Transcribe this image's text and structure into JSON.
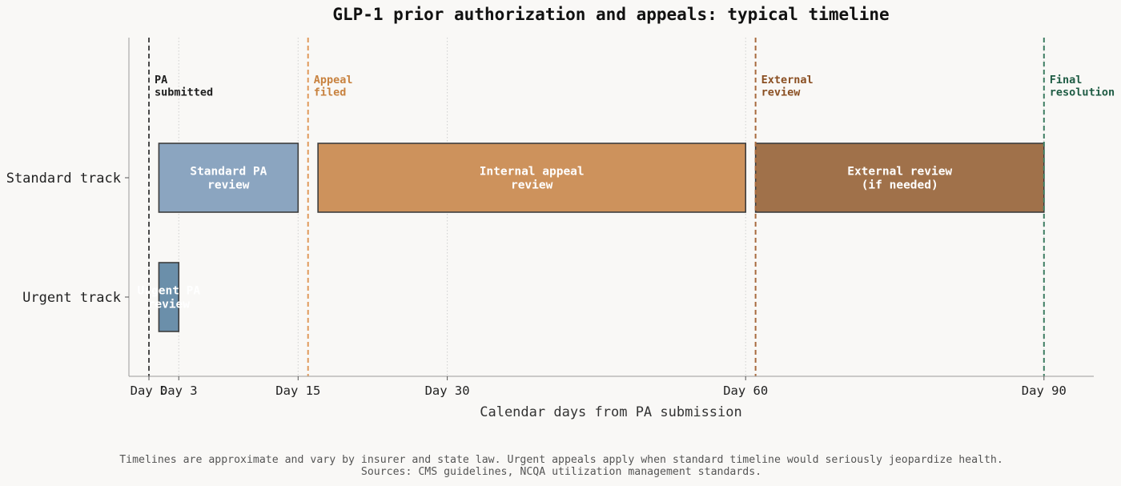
{
  "chart_data": {
    "type": "gantt",
    "title": "GLP-1 prior authorization and appeals: typical timeline",
    "xlabel": "Calendar days from PA submission",
    "xlim": [
      -2,
      95
    ],
    "xticks": [
      {
        "value": 0,
        "label": "Day 0"
      },
      {
        "value": 3,
        "label": "Day 3"
      },
      {
        "value": 15,
        "label": "Day 15"
      },
      {
        "value": 30,
        "label": "Day 30"
      },
      {
        "value": 60,
        "label": "Day 60"
      },
      {
        "value": 90,
        "label": "Day 90"
      }
    ],
    "categories": [
      "Standard track",
      "Urgent track"
    ],
    "bars": [
      {
        "track": "Standard track",
        "start": 1,
        "end": 15,
        "label": "Standard PA\nreview",
        "color": "#8ba5c0"
      },
      {
        "track": "Standard track",
        "start": 17,
        "end": 60,
        "label": "Internal appeal\nreview",
        "color": "#cd925c"
      },
      {
        "track": "Standard track",
        "start": 61,
        "end": 90,
        "label": "External review\n(if needed)",
        "color": "#a0714a"
      },
      {
        "track": "Urgent track",
        "start": 1,
        "end": 3,
        "label": "Urgent PA\nreview",
        "color": "#6b8faa"
      }
    ],
    "milestones": [
      {
        "x": 0,
        "label": "PA\nsubmitted",
        "color": "#4a4a4a",
        "text_color": "#1e1e1e"
      },
      {
        "x": 16,
        "label": "Appeal\nfiled",
        "color": "#e09a5c",
        "text_color": "#c8823f"
      },
      {
        "x": 61,
        "label": "External\nreview",
        "color": "#a86a3e",
        "text_color": "#8a4f22"
      },
      {
        "x": 90,
        "label": "Final\nresolution",
        "color": "#3e7d63",
        "text_color": "#1f5c44"
      }
    ],
    "grid": "x-dotted"
  },
  "footnote": [
    "Timelines are approximate and vary by insurer and state law. Urgent appeals apply when standard timeline would seriously jeopardize health.",
    "Sources: CMS guidelines, NCQA utilization management standards."
  ]
}
